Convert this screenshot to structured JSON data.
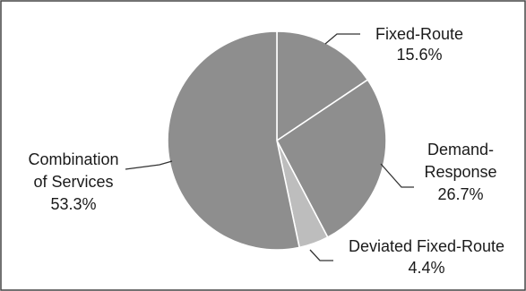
{
  "chart_data": {
    "type": "pie",
    "title": "",
    "start_angle_deg": 0,
    "direction": "clockwise",
    "legend": "none",
    "slices": [
      {
        "label_lines": [
          "Fixed-Route"
        ],
        "value_label": "15.6%",
        "value": 15.6,
        "color": "#8e8e8e"
      },
      {
        "label_lines": [
          "Demand-",
          "Response"
        ],
        "value_label": "26.7%",
        "value": 26.7,
        "color": "#8e8e8e"
      },
      {
        "label_lines": [
          "Deviated Fixed-Route"
        ],
        "value_label": "4.4%",
        "value": 4.4,
        "color": "#bdbdbd"
      },
      {
        "label_lines": [
          "Combination",
          "of Services"
        ],
        "value_label": "53.3%",
        "value": 53.3,
        "color": "#8e8e8e"
      }
    ]
  }
}
